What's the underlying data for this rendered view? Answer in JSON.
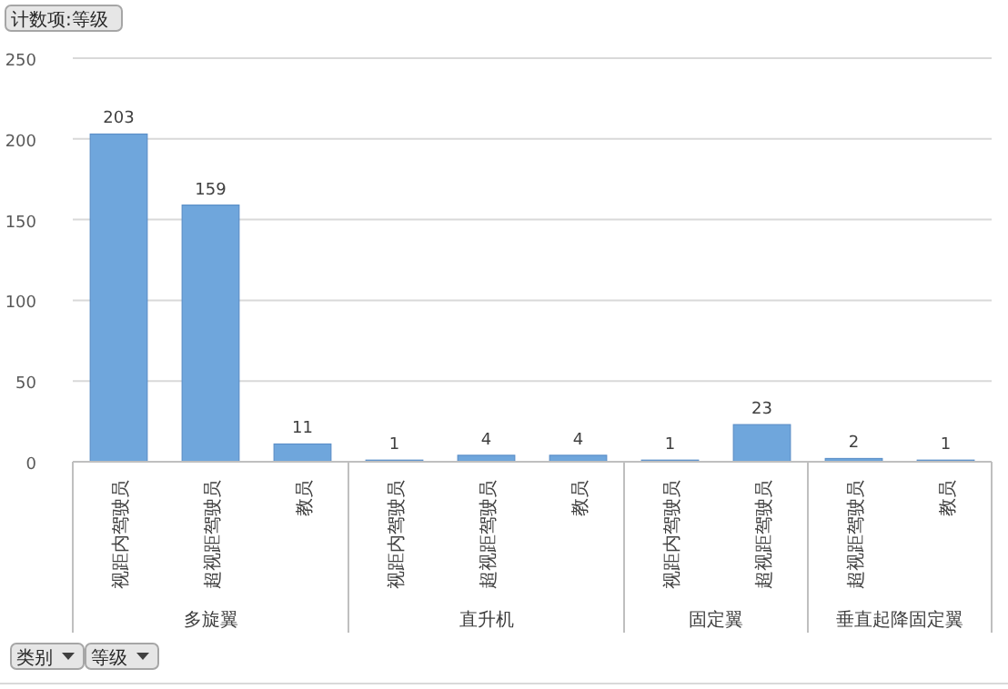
{
  "chart_data": {
    "type": "bar",
    "categories": [
      "视距内驾驶员",
      "超视距驾驶员",
      "教员",
      "视距内驾驶员",
      "超视距驾驶员",
      "教员",
      "视距内驾驶员",
      "超视距驾驶员",
      "超视距驾驶员",
      "教员"
    ],
    "values": [
      203,
      159,
      11,
      1,
      4,
      4,
      1,
      23,
      2,
      1
    ],
    "color": "#6fa6dc",
    "ylim": [
      0,
      250
    ],
    "yticks": [
      0,
      50,
      100,
      150,
      200,
      250
    ],
    "grid": "y",
    "data_labels": true,
    "annotations": [
      "计数项:等级",
      "类别",
      "等级",
      "多旋翼",
      "直升机",
      "固定翼",
      "垂直起降固定翼"
    ]
  }
}
